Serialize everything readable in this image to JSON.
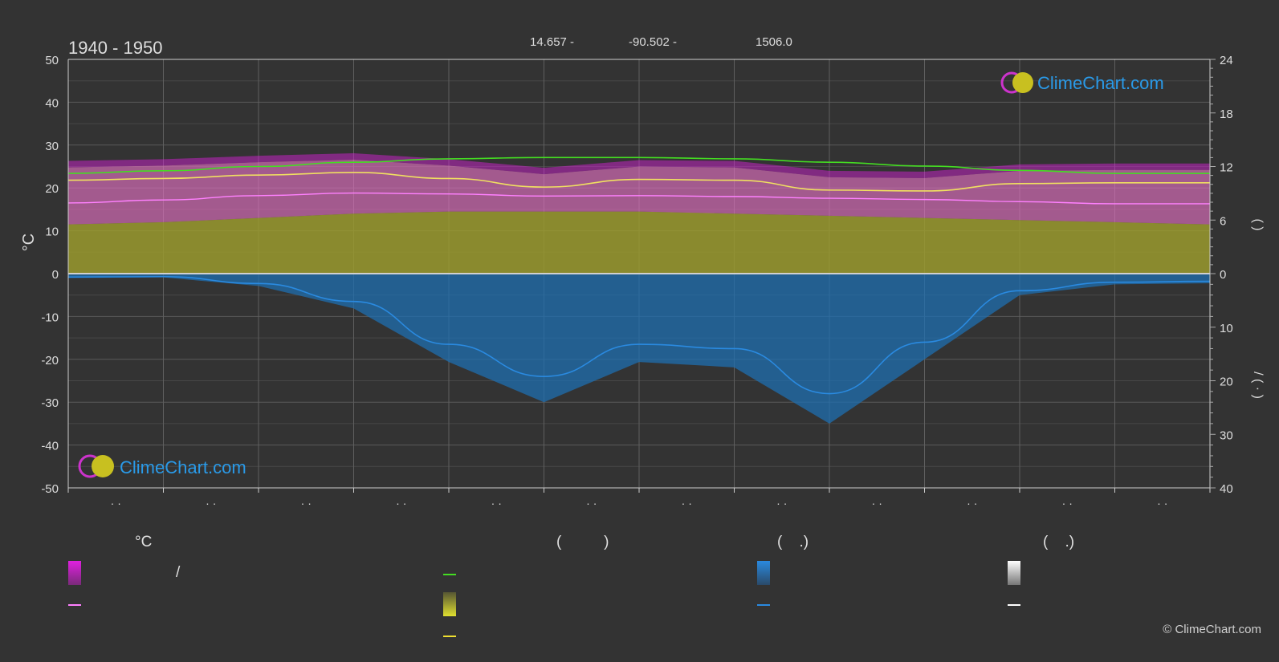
{
  "header": {
    "period": "1940 - 1950",
    "lat": "14.657 -",
    "lon": "-90.502 -",
    "elev": "1506.0"
  },
  "brand": {
    "logo_text": "ClimeChart.com",
    "copyright": "© ClimeChart.com"
  },
  "colors": {
    "background": "#333333",
    "sun_line": "#44dd22",
    "sunshine_fill": "#9a9a2e",
    "temp_band": "#e070c0",
    "temp_extreme": "#e020e0",
    "temp_mean_line": "#ff80ff",
    "sunshine_line": "#f0e060",
    "rain": "#1f6fb0",
    "rain_line": "#2a8ae0",
    "logo": "#2a9ae8"
  },
  "legend": {
    "temp_header": "°C",
    "sun_header": "(          )",
    "rain_header": "(    .)",
    "snow_header": "(    .)",
    "slash": "/"
  },
  "axes": {
    "left_label": "°C",
    "right_label_top": "(      )",
    "right_label_bottom": "/      (  ·  )"
  },
  "chart_data": {
    "type": "area",
    "months": 12,
    "left_axis": {
      "ticks": [
        50,
        40,
        30,
        20,
        10,
        0,
        -10,
        -20,
        -30,
        -40,
        -50
      ],
      "ylim": [
        -50,
        50
      ]
    },
    "right_axis_top": {
      "ticks": [
        24,
        18,
        12,
        6,
        0
      ],
      "ylim": [
        0,
        24
      ]
    },
    "right_axis_bottom": {
      "ticks": [
        0,
        10,
        20,
        30,
        40
      ],
      "ylim": [
        0,
        40
      ]
    },
    "x_tick_labels": [
      "· ·",
      "· ·",
      "· ·",
      "· ·",
      "· ·",
      "· ·",
      "· ·",
      "· ·",
      "· ·",
      "· ·",
      "· ·",
      "· ·"
    ],
    "series": [
      {
        "key": "daylight",
        "x": [
          0.0,
          1.0,
          2.0,
          3.0,
          4.0,
          5.0,
          6.0,
          7.0,
          8.0,
          9.0,
          10.0,
          11.0,
          12.0
        ],
        "values": [
          23.4,
          24.0,
          25.0,
          26.0,
          26.8,
          27.1,
          27.1,
          26.8,
          26.0,
          25.1,
          24.1,
          23.4,
          23.4
        ]
      },
      {
        "key": "max_temp_mean",
        "x": [
          0.0,
          1.0,
          2.0,
          3.0,
          4.0,
          5.0,
          6.0,
          7.0,
          8.0,
          9.0,
          10.0,
          11.0,
          12.0
        ],
        "values": [
          21.8,
          22.2,
          23.0,
          23.6,
          22.2,
          20.2,
          22.0,
          21.8,
          19.5,
          19.3,
          21.0,
          21.2,
          21.2
        ]
      },
      {
        "key": "mean_temp",
        "x": [
          0.0,
          1.0,
          2.0,
          3.0,
          4.0,
          5.0,
          6.0,
          7.0,
          8.0,
          9.0,
          10.0,
          11.0,
          12.0
        ],
        "values": [
          16.5,
          17.2,
          18.2,
          18.8,
          18.6,
          18.1,
          18.2,
          18.0,
          17.6,
          17.3,
          16.8,
          16.3,
          16.3
        ]
      },
      {
        "key": "sunshine_band_top",
        "x": [
          0.0,
          1.0,
          2.0,
          3.0,
          4.0,
          5.0,
          6.0,
          7.0,
          8.0,
          9.0,
          10.0,
          11.0,
          12.0
        ],
        "values": [
          11.5,
          12.0,
          13.0,
          14.0,
          14.5,
          14.5,
          14.5,
          14.0,
          13.5,
          13.0,
          12.5,
          12.0,
          11.5
        ]
      },
      {
        "key": "rain_mean",
        "x": [
          0.0,
          1.0,
          2.0,
          3.0,
          4.0,
          5.0,
          6.0,
          7.0,
          8.0,
          9.0,
          10.0,
          11.0,
          12.0
        ],
        "values": [
          -0.8,
          -0.7,
          -2.3,
          -6.5,
          -16.5,
          -24.0,
          -16.5,
          -17.5,
          -28.0,
          -16.0,
          -4.0,
          -2.0,
          -1.8
        ]
      }
    ]
  }
}
